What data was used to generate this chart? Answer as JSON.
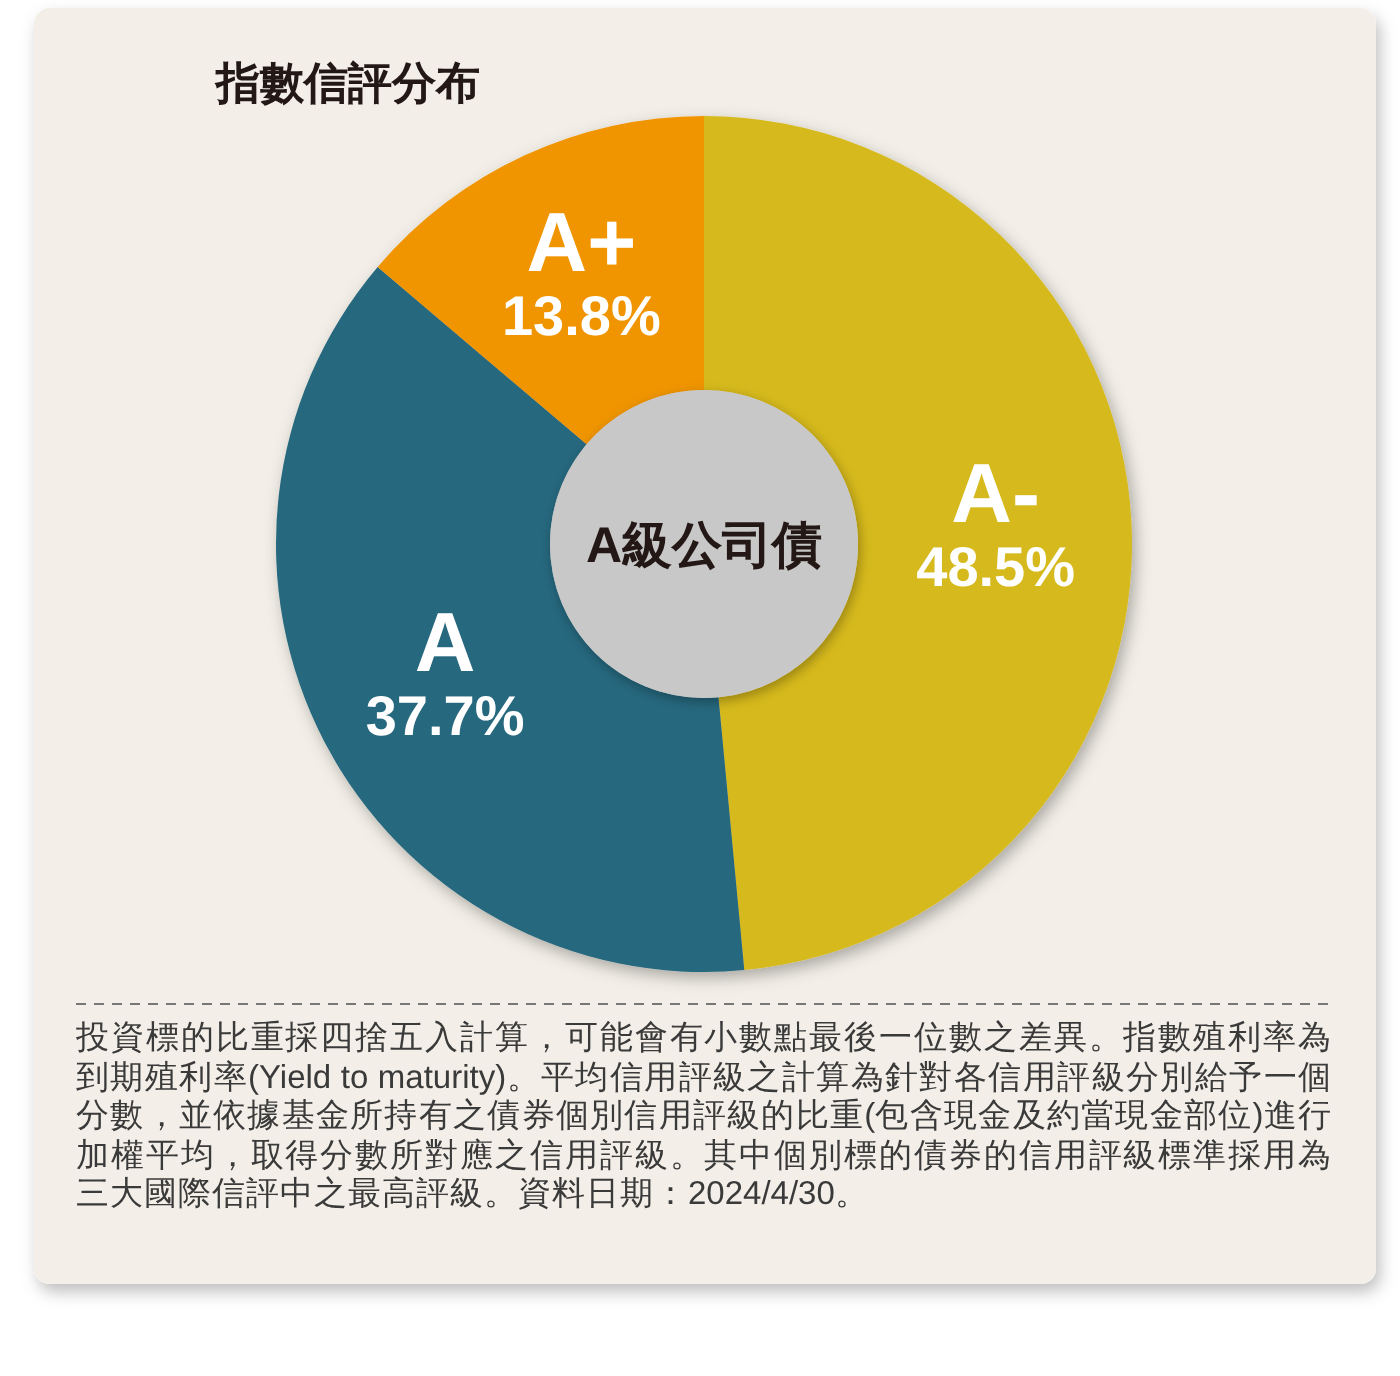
{
  "chart_data": {
    "type": "donut",
    "title": "指數信評分布",
    "categories": [
      "A-",
      "A",
      "A+"
    ],
    "values": [
      48.5,
      37.7,
      13.8
    ],
    "colors": [
      "#d6b91c",
      "#25677e",
      "#f09500"
    ],
    "value_labels": [
      "48.5%",
      "37.7%",
      "13.8%"
    ],
    "annotations": [
      "A級公司債",
      "投資標的比重採四捨五入計算，可能會有小數點最後一位數之差異。指數殖利率為到期殖利率(Yield to maturity)。平均信用評級之計算為針對各信用評級分別給予一個分數，並依據基金所持有之債券個別信用評級的比重(包含現金及約當現金部位)進行加權平均，取得分數所對應之信用評級。其中個別標的債券的信用評級標準採用為三大國際信評中之最高評級。資料日期：2024/4/30。"
    ]
  }
}
